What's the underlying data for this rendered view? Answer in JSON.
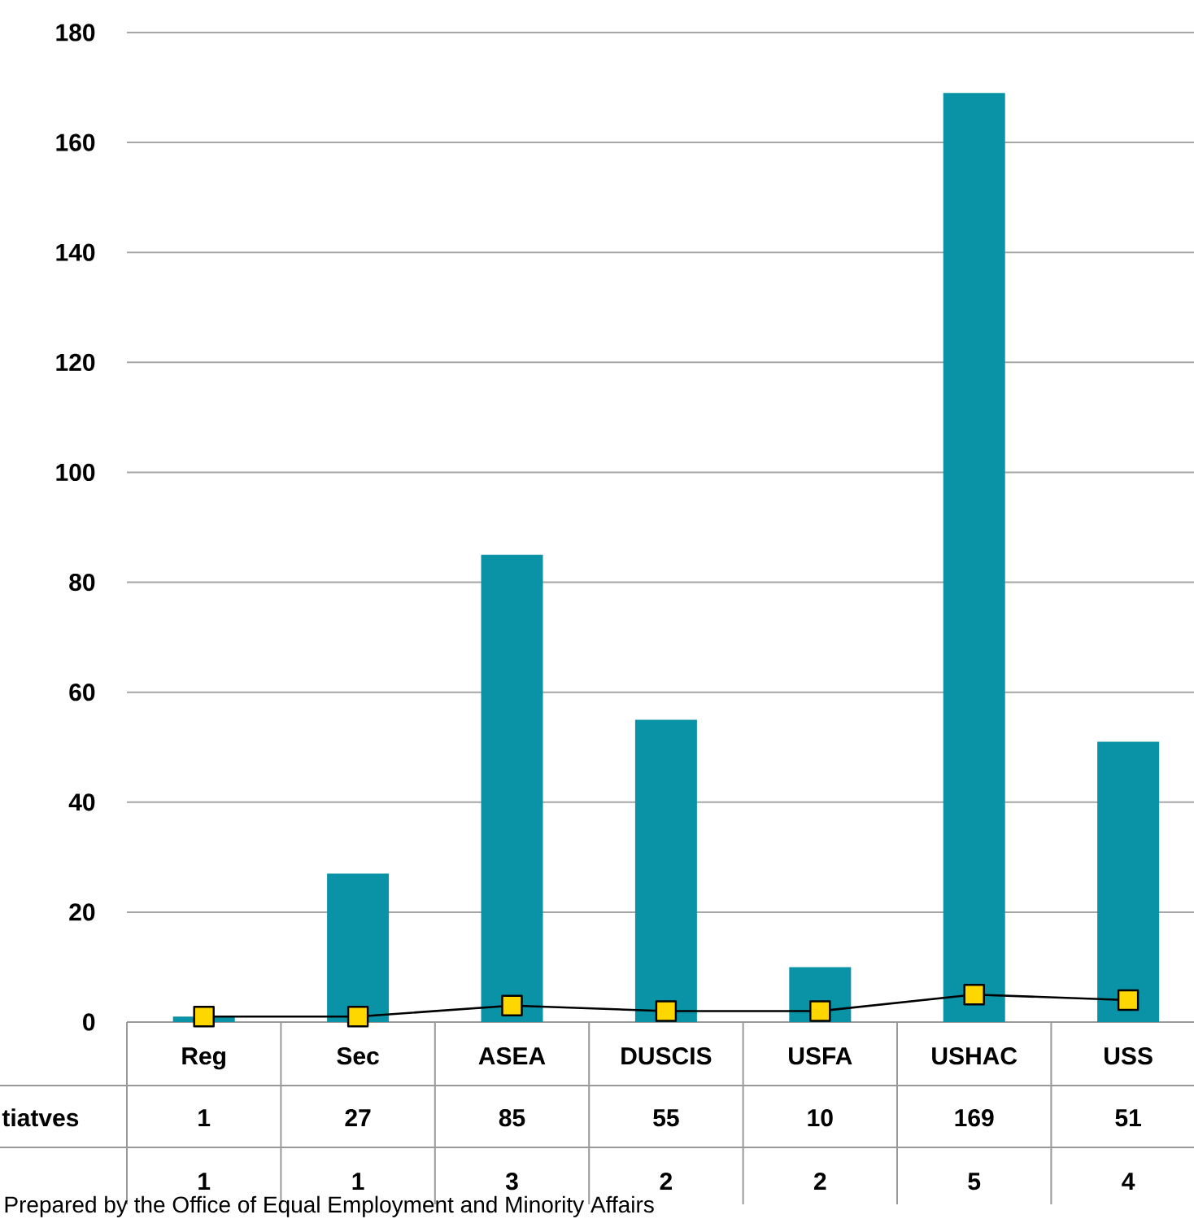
{
  "chart_data": {
    "type": "bar",
    "categories": [
      "Reg",
      "Sec",
      "ASEA",
      "DUSCIS",
      "USFA",
      "USHAC",
      "USS"
    ],
    "series": [
      {
        "name": "tiatves",
        "color": "#0a93a7",
        "values": [
          1,
          27,
          85,
          55,
          10,
          169,
          51
        ]
      },
      {
        "type": "line",
        "color": "#ffd700",
        "marker": "square",
        "values": [
          1,
          1,
          3,
          2,
          2,
          5,
          4
        ]
      }
    ],
    "ylim": [
      0,
      180
    ],
    "yticks": [
      0,
      20,
      40,
      60,
      80,
      100,
      120,
      140,
      160,
      180
    ],
    "grid": "y",
    "data_labels": true,
    "annotations": [
      "Prepared by the Office of Equal Employment and Minority Affairs"
    ]
  }
}
